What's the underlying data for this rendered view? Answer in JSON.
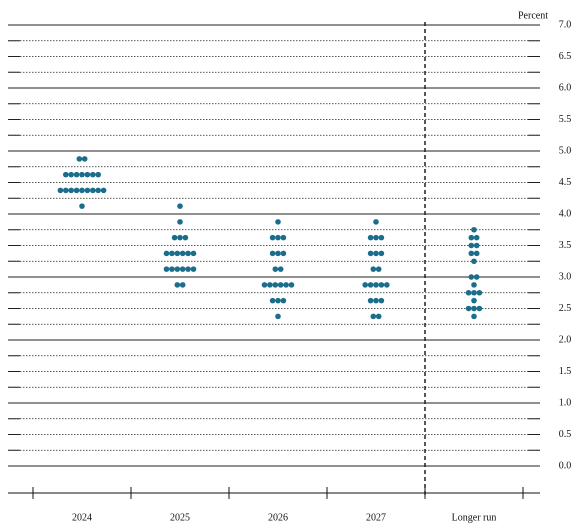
{
  "chart_data": {
    "type": "dot_plot",
    "y_label": "Percent",
    "color": "#1b6d8c",
    "categories": [
      "2024",
      "2025",
      "2026",
      "2027",
      "Longer run"
    ],
    "dots": [
      [
        {
          "rate": 4.875,
          "count": 2
        },
        {
          "rate": 4.625,
          "count": 7
        },
        {
          "rate": 4.375,
          "count": 9
        },
        {
          "rate": 4.125,
          "count": 1
        }
      ],
      [
        {
          "rate": 4.125,
          "count": 1
        },
        {
          "rate": 3.875,
          "count": 1
        },
        {
          "rate": 3.625,
          "count": 3
        },
        {
          "rate": 3.375,
          "count": 6
        },
        {
          "rate": 3.125,
          "count": 6
        },
        {
          "rate": 2.875,
          "count": 2
        }
      ],
      [
        {
          "rate": 3.875,
          "count": 1
        },
        {
          "rate": 3.625,
          "count": 3
        },
        {
          "rate": 3.375,
          "count": 3
        },
        {
          "rate": 3.125,
          "count": 2
        },
        {
          "rate": 2.875,
          "count": 6
        },
        {
          "rate": 2.625,
          "count": 3
        },
        {
          "rate": 2.375,
          "count": 1
        }
      ],
      [
        {
          "rate": 3.875,
          "count": 1
        },
        {
          "rate": 3.625,
          "count": 3
        },
        {
          "rate": 3.375,
          "count": 3
        },
        {
          "rate": 3.125,
          "count": 2
        },
        {
          "rate": 2.875,
          "count": 5
        },
        {
          "rate": 2.625,
          "count": 3
        },
        {
          "rate": 2.375,
          "count": 2
        }
      ],
      [
        {
          "rate": 3.75,
          "count": 1
        },
        {
          "rate": 3.625,
          "count": 2
        },
        {
          "rate": 3.5,
          "count": 2
        },
        {
          "rate": 3.375,
          "count": 2
        },
        {
          "rate": 3.25,
          "count": 1
        },
        {
          "rate": 3.0,
          "count": 2
        },
        {
          "rate": 2.875,
          "count": 1
        },
        {
          "rate": 2.75,
          "count": 3
        },
        {
          "rate": 2.625,
          "count": 1
        },
        {
          "rate": 2.5,
          "count": 3
        },
        {
          "rate": 2.375,
          "count": 1
        }
      ]
    ],
    "ylim": [
      0,
      7
    ],
    "yticks": [
      {
        "value": 0,
        "label": "0.0"
      },
      0.5,
      {
        "value": 1,
        "label": "1.0"
      },
      1.5,
      {
        "value": 2,
        "label": "2.0"
      },
      2.5,
      {
        "value": 3,
        "label": "3.0"
      },
      3.5,
      {
        "value": 4,
        "label": "4.0"
      },
      4.5,
      {
        "value": 5,
        "label": "5.0"
      },
      5.5,
      {
        "value": 6,
        "label": "6.0"
      },
      6.5,
      {
        "value": 7,
        "label": "7.0"
      }
    ],
    "minor_yticks": [
      0.25,
      0.75,
      1.25,
      1.75,
      2.25,
      2.75,
      3.25,
      3.75,
      4.25,
      4.75,
      5.25,
      5.75,
      6.25,
      6.75
    ],
    "grid": true
  }
}
